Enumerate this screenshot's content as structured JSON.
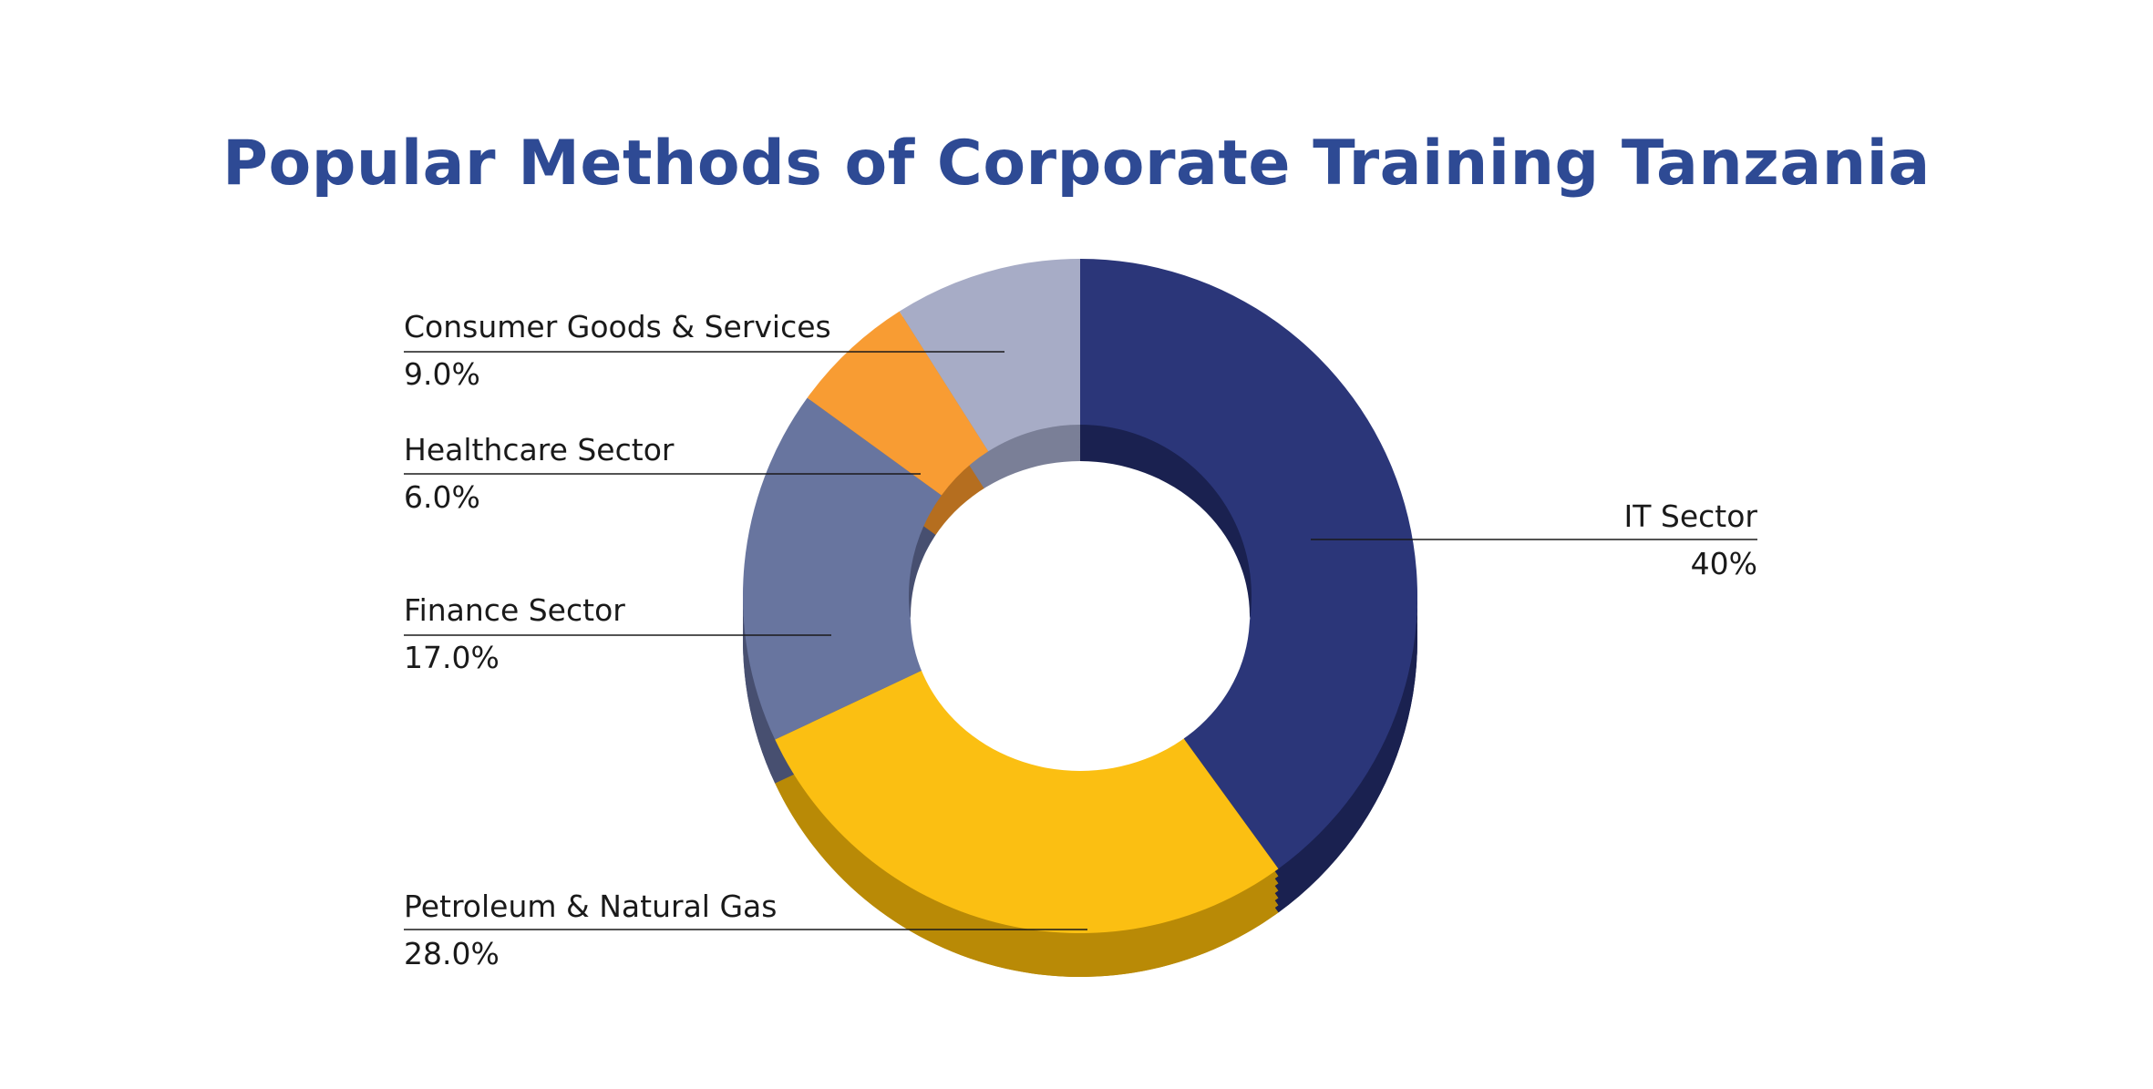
{
  "chart_data": {
    "type": "pie",
    "title": "Popular Methods of Corporate Training Tanzania",
    "donut": true,
    "style_3d": true,
    "legend": "none",
    "slices": [
      {
        "label": "IT Sector",
        "value_label": "40%",
        "value": 40,
        "color": "#2b3679",
        "side_color": "#1a2150"
      },
      {
        "label": "Petroleum & Natural Gas",
        "value_label": "28.0%",
        "value": 28,
        "color": "#fbbf12",
        "side_color": "#b98a06"
      },
      {
        "label": "Finance Sector",
        "value_label": "17.0%",
        "value": 17,
        "color": "#68759f",
        "side_color": "#474f70"
      },
      {
        "label": "Healthcare Sector",
        "value_label": "6.0%",
        "value": 6,
        "color": "#f89c33",
        "side_color": "#b56e1f"
      },
      {
        "label": "Consumer Goods & Services",
        "value_label": "9.0%",
        "value": 9,
        "color": "#a7acc6",
        "side_color": "#7a7f97"
      }
    ]
  }
}
